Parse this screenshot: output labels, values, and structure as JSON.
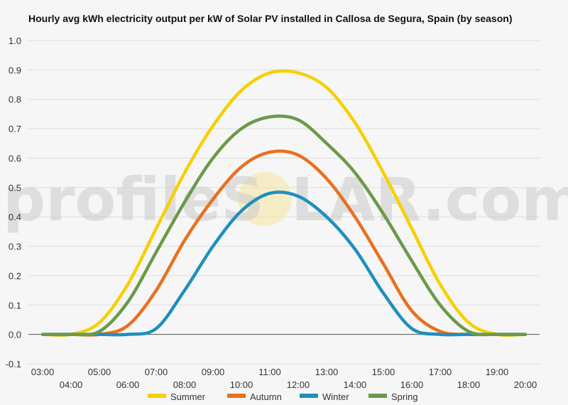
{
  "watermark": {
    "left": "profileS",
    "right": "LAR.com",
    "sun_color": "#f5e6a0"
  },
  "chart_data": {
    "type": "line",
    "title": "Hourly avg kWh electricity output per kW of Solar PV installed in Callosa de Segura, Spain (by season)",
    "xlabel": "",
    "ylabel": "",
    "ylim": [
      -0.1,
      1.0
    ],
    "yticks": [
      -0.1,
      0.0,
      0.1,
      0.2,
      0.3,
      0.4,
      0.5,
      0.6,
      0.7,
      0.8,
      0.9,
      1.0
    ],
    "ytick_labels": [
      "-0.1",
      "0.0",
      "0.1",
      "0.2",
      "0.3",
      "0.4",
      "0.5",
      "0.6",
      "0.7",
      "0.8",
      "0.9",
      "1.0"
    ],
    "xlim": [
      2.5,
      20.5
    ],
    "xticks": [
      3,
      4,
      5,
      6,
      7,
      8,
      9,
      10,
      11,
      12,
      13,
      14,
      15,
      16,
      17,
      18,
      19,
      20
    ],
    "xtick_labels": [
      "03:00",
      "04:00",
      "05:00",
      "06:00",
      "07:00",
      "08:00",
      "09:00",
      "10:00",
      "11:00",
      "12:00",
      "13:00",
      "14:00",
      "15:00",
      "16:00",
      "17:00",
      "18:00",
      "19:00",
      "20:00"
    ],
    "grid": "horizontal",
    "legend_position": "bottom",
    "series": [
      {
        "name": "Summer",
        "color": "#f7d000",
        "x": [
          3,
          4,
          5,
          6,
          7,
          8,
          9,
          10,
          11,
          12,
          13,
          14,
          15,
          16,
          17,
          18,
          19,
          20
        ],
        "values": [
          0.0,
          0.0,
          0.04,
          0.17,
          0.36,
          0.55,
          0.71,
          0.83,
          0.89,
          0.89,
          0.84,
          0.72,
          0.55,
          0.36,
          0.17,
          0.04,
          0.0,
          0.0
        ]
      },
      {
        "name": "Autumn",
        "color": "#e8711f",
        "x": [
          3,
          4,
          5,
          6,
          7,
          8,
          9,
          10,
          11,
          12,
          13,
          14,
          15,
          16,
          17,
          18,
          19,
          20
        ],
        "values": [
          0.0,
          0.0,
          0.0,
          0.03,
          0.15,
          0.32,
          0.46,
          0.57,
          0.62,
          0.61,
          0.53,
          0.4,
          0.24,
          0.08,
          0.01,
          0.0,
          0.0,
          0.0
        ]
      },
      {
        "name": "Winter",
        "color": "#1f8fbd",
        "x": [
          3,
          4,
          5,
          6,
          7,
          8,
          9,
          10,
          11,
          12,
          13,
          14,
          15,
          16,
          17,
          18,
          19,
          20
        ],
        "values": [
          0.0,
          0.0,
          0.0,
          0.0,
          0.02,
          0.15,
          0.3,
          0.42,
          0.48,
          0.47,
          0.4,
          0.29,
          0.14,
          0.02,
          0.0,
          0.0,
          0.0,
          0.0
        ]
      },
      {
        "name": "Spring",
        "color": "#6a9a4a",
        "x": [
          3,
          4,
          5,
          6,
          7,
          8,
          9,
          10,
          11,
          12,
          13,
          14,
          15,
          16,
          17,
          18,
          19,
          20
        ],
        "values": [
          0.0,
          0.0,
          0.01,
          0.11,
          0.28,
          0.45,
          0.6,
          0.7,
          0.74,
          0.73,
          0.65,
          0.55,
          0.41,
          0.25,
          0.1,
          0.01,
          0.0,
          0.0
        ]
      }
    ]
  }
}
